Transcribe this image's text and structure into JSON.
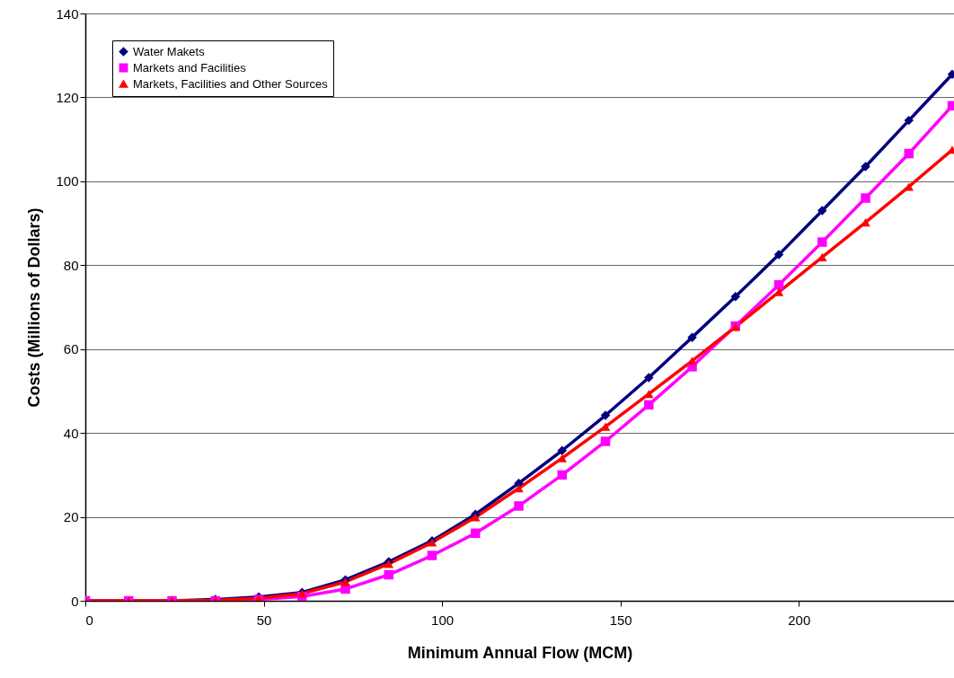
{
  "chart_data": {
    "type": "line",
    "xlabel": "Minimum Annual Flow (MCM)",
    "ylabel": "Costs (Millions of Dollars)",
    "x": [
      0,
      12.15,
      24.3,
      36.45,
      48.6,
      60.75,
      72.9,
      85.05,
      97.2,
      109.35,
      121.5,
      133.65,
      145.8,
      157.95,
      170.1,
      182.25,
      194.4,
      206.55,
      218.7,
      230.85,
      243
    ],
    "series": [
      {
        "name": "Water Makets",
        "color": "#000080",
        "marker": "diamond",
        "values": [
          0,
          0,
          0,
          0.3,
          0.9,
          2,
          5,
          9.3,
          14.3,
          20.6,
          28,
          35.8,
          44.2,
          53.2,
          62.8,
          72.5,
          82.5,
          93,
          103.5,
          114.5,
          125.5
        ]
      },
      {
        "name": "Markets and Facilities",
        "color": "#ff00ff",
        "marker": "square",
        "values": [
          0,
          0,
          0,
          0,
          0.3,
          1,
          2.8,
          6.2,
          10.8,
          16.1,
          22.6,
          30,
          38,
          46.7,
          55.8,
          65.5,
          75.3,
          85.5,
          96,
          106.6,
          118
        ]
      },
      {
        "name": "Markets, Facilities and Other Sources",
        "color": "#ff0000",
        "marker": "triangle",
        "values": [
          0,
          0,
          0,
          0.1,
          0.6,
          1.7,
          4.5,
          8.8,
          13.9,
          19.9,
          26.8,
          34,
          41.5,
          49.3,
          57.2,
          65.3,
          73.6,
          81.9,
          90.2,
          98.7,
          107.5
        ]
      }
    ],
    "xlim": [
      0,
      243.5
    ],
    "xticks": [
      0,
      50,
      100,
      150,
      200
    ],
    "ylim": [
      0,
      140
    ],
    "yticks": [
      0,
      20,
      40,
      60,
      80,
      100,
      120,
      140
    ],
    "grid": "y",
    "legend": "top left"
  }
}
